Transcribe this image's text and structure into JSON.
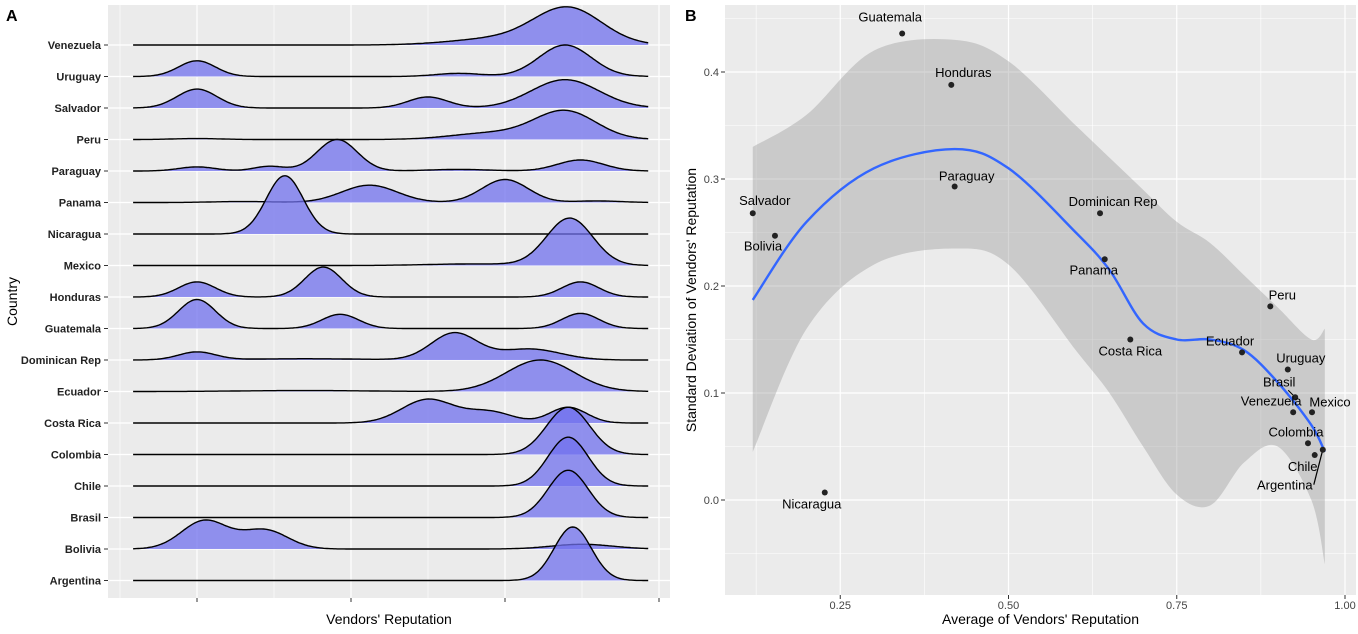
{
  "chart_data": [
    {
      "panel": "A",
      "type": "area",
      "subtype": "ridgeline-density",
      "xlabel": "Vendors' Reputation",
      "ylabel": "Country",
      "xticks": [
        1,
        2,
        3,
        4
      ],
      "xlim": [
        0.585,
        3.93
      ],
      "grid": true,
      "fill_color": "#7070ee",
      "note_components": "each ridge is a sum of peaks [center, spread, height in row units]",
      "series": [
        {
          "name": "Venezuela",
          "peaks": [
            [
              3.41,
              0.22,
              1.15
            ],
            [
              2.95,
              0.3,
              0.2
            ]
          ]
        },
        {
          "name": "Uruguay",
          "peaks": [
            [
              1.0,
              0.12,
              0.5
            ],
            [
              2.7,
              0.15,
              0.1
            ],
            [
              3.39,
              0.17,
              1.0
            ]
          ]
        },
        {
          "name": "Salvador",
          "peaks": [
            [
              1.0,
              0.13,
              0.6
            ],
            [
              2.5,
              0.13,
              0.35
            ],
            [
              3.39,
              0.22,
              0.9
            ]
          ]
        },
        {
          "name": "Peru",
          "peaks": [
            [
              1.0,
              0.15,
              0.03
            ],
            [
              2.9,
              0.25,
              0.2
            ],
            [
              3.39,
              0.2,
              0.9
            ]
          ]
        },
        {
          "name": "Paraguay",
          "peaks": [
            [
              1.0,
              0.12,
              0.13
            ],
            [
              1.47,
              0.1,
              0.15
            ],
            [
              1.91,
              0.13,
              1.0
            ],
            [
              2.7,
              0.2,
              0.05
            ],
            [
              3.49,
              0.15,
              0.35
            ]
          ]
        },
        {
          "name": "Panama",
          "peaks": [
            [
              1.3,
              0.2,
              0.03
            ],
            [
              2.12,
              0.18,
              0.55
            ],
            [
              3.0,
              0.15,
              0.73
            ],
            [
              3.6,
              0.15,
              0.05
            ]
          ]
        },
        {
          "name": "Nicaragua",
          "peaks": [
            [
              1.57,
              0.12,
              1.85
            ]
          ]
        },
        {
          "name": "Mexico",
          "peaks": [
            [
              3.42,
              0.15,
              1.5
            ],
            [
              2.8,
              0.3,
              0.05
            ]
          ]
        },
        {
          "name": "Honduras",
          "peaks": [
            [
              1.0,
              0.12,
              0.48
            ],
            [
              1.82,
              0.12,
              0.95
            ],
            [
              3.49,
              0.12,
              0.48
            ]
          ]
        },
        {
          "name": "Guatemala",
          "peaks": [
            [
              1.0,
              0.12,
              0.92
            ],
            [
              1.93,
              0.12,
              0.45
            ],
            [
              3.49,
              0.12,
              0.48
            ]
          ]
        },
        {
          "name": "Dominican Rep",
          "peaks": [
            [
              1.0,
              0.12,
              0.25
            ],
            [
              1.7,
              0.4,
              0.04
            ],
            [
              2.67,
              0.15,
              0.85
            ],
            [
              3.16,
              0.2,
              0.35
            ]
          ]
        },
        {
          "name": "Ecuador",
          "peaks": [
            [
              3.23,
              0.22,
              1.0
            ],
            [
              1.7,
              0.4,
              0.03
            ]
          ]
        },
        {
          "name": "Costa Rica",
          "peaks": [
            [
              2.5,
              0.17,
              0.75
            ],
            [
              2.9,
              0.15,
              0.35
            ],
            [
              3.41,
              0.12,
              0.5
            ]
          ]
        },
        {
          "name": "Colombia",
          "peaks": [
            [
              3.41,
              0.14,
              1.5
            ]
          ]
        },
        {
          "name": "Chile",
          "peaks": [
            [
              3.41,
              0.13,
              1.55
            ]
          ]
        },
        {
          "name": "Brasil",
          "peaks": [
            [
              3.41,
              0.13,
              1.5
            ]
          ]
        },
        {
          "name": "Bolivia",
          "peaks": [
            [
              1.05,
              0.15,
              0.9
            ],
            [
              1.44,
              0.15,
              0.6
            ],
            [
              3.5,
              0.2,
              0.15
            ]
          ]
        },
        {
          "name": "Argentina",
          "peaks": [
            [
              3.44,
              0.12,
              1.7
            ]
          ]
        }
      ]
    },
    {
      "panel": "B",
      "type": "scatter",
      "xlabel": "Average of Vendors' Reputation",
      "ylabel": "Standard Deviation of Vendors' Reputation",
      "xlim": [
        0.06,
        1.02
      ],
      "ylim": [
        -0.19,
        0.465
      ],
      "xticks": [
        "0.25",
        "0.50",
        "0.75",
        "1.00"
      ],
      "yticks": [
        "0.0",
        "0.1",
        "0.2",
        "0.3",
        "0.4"
      ],
      "grid": true,
      "smooth_color": "#3366ff",
      "points": [
        {
          "label": "Guatemala",
          "x": 0.342,
          "y": 0.436
        },
        {
          "label": "Honduras",
          "x": 0.415,
          "y": 0.388
        },
        {
          "label": "Salvador",
          "x": 0.12,
          "y": 0.268
        },
        {
          "label": "Bolivia",
          "x": 0.153,
          "y": 0.247
        },
        {
          "label": "Paraguay",
          "x": 0.42,
          "y": 0.293
        },
        {
          "label": "Dominican Rep",
          "x": 0.636,
          "y": 0.268
        },
        {
          "label": "Panama",
          "x": 0.643,
          "y": 0.225
        },
        {
          "label": "Costa Rica",
          "x": 0.681,
          "y": 0.15
        },
        {
          "label": "Ecuador",
          "x": 0.847,
          "y": 0.138
        },
        {
          "label": "Peru",
          "x": 0.889,
          "y": 0.181
        },
        {
          "label": "Uruguay",
          "x": 0.915,
          "y": 0.122
        },
        {
          "label": "Brasil",
          "x": 0.926,
          "y": 0.096
        },
        {
          "label": "Venezuela",
          "x": 0.923,
          "y": 0.082
        },
        {
          "label": "Mexico",
          "x": 0.951,
          "y": 0.082
        },
        {
          "label": "Colombia",
          "x": 0.945,
          "y": 0.053
        },
        {
          "label": "Chile",
          "x": 0.955,
          "y": 0.042
        },
        {
          "label": "Argentina",
          "x": 0.967,
          "y": 0.047
        },
        {
          "label": "Nicaragua",
          "x": 0.227,
          "y": 0.007
        }
      ],
      "smooth": {
        "x": [
          0.12,
          0.2,
          0.3,
          0.42,
          0.5,
          0.6,
          0.65,
          0.7,
          0.75,
          0.8,
          0.85,
          0.9,
          0.95,
          0.97
        ],
        "y": [
          0.187,
          0.26,
          0.31,
          0.328,
          0.31,
          0.25,
          0.215,
          0.165,
          0.15,
          0.15,
          0.14,
          0.11,
          0.07,
          0.045
        ],
        "upper": [
          0.33,
          0.36,
          0.42,
          0.43,
          0.41,
          0.35,
          0.32,
          0.29,
          0.26,
          0.24,
          0.21,
          0.18,
          0.15,
          0.16
        ],
        "lower": [
          0.045,
          0.16,
          0.22,
          0.235,
          0.22,
          0.14,
          0.1,
          0.05,
          0.005,
          -0.005,
          0.035,
          0.05,
          0.0,
          -0.06
        ]
      }
    }
  ],
  "panel_labels": {
    "a": "A",
    "b": "B"
  }
}
